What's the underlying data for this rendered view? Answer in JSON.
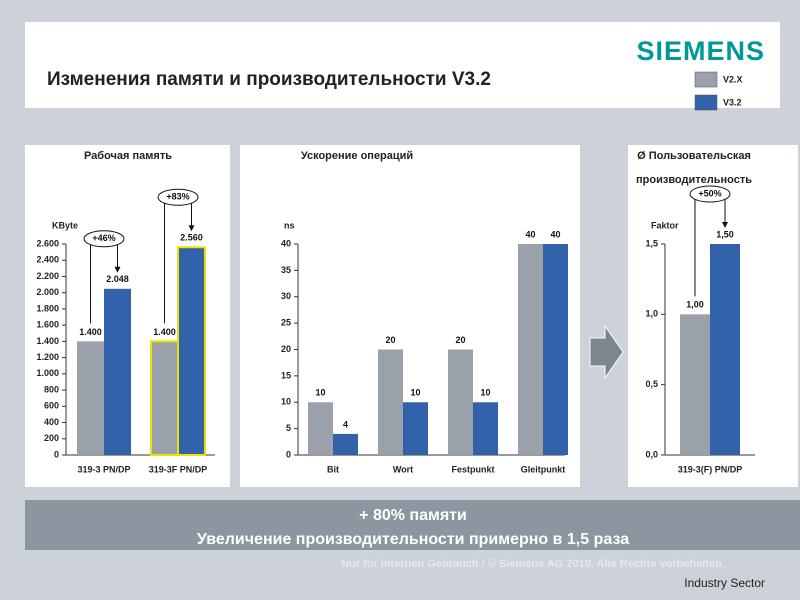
{
  "header": {
    "logo": "SIEMENS",
    "title": "Изменения памяти и производительности V3.2"
  },
  "chart_data": [
    {
      "type": "bar",
      "title": "Рабочая память",
      "y_label": "KByte",
      "categories": [
        "319-3 PN/DP",
        "319-3F PN/DP"
      ],
      "series": [
        {
          "name": "V2.X",
          "color": "#9aa1aa",
          "values": [
            1400,
            1400
          ],
          "value_labels": [
            "1.400",
            "1.400"
          ]
        },
        {
          "name": "V3.2",
          "color": "#3262aa",
          "values": [
            2048,
            2560
          ],
          "value_labels": [
            "2.048",
            "2.560"
          ]
        }
      ],
      "ylim": [
        0,
        2600
      ],
      "yticks": [
        0,
        200,
        400,
        600,
        800,
        {
          "value": 1000,
          "label": "1.000"
        },
        {
          "value": 1200,
          "label": "1.200"
        },
        {
          "value": 1400,
          "label": "1.400"
        },
        {
          "value": 1600,
          "label": "1.600"
        },
        {
          "value": 1800,
          "label": "1.800"
        },
        {
          "value": 2000,
          "label": "2.000"
        },
        {
          "value": 2200,
          "label": "2.200"
        },
        {
          "value": 2400,
          "label": "2.400"
        },
        {
          "value": 2600,
          "label": "2.600"
        }
      ],
      "annotations": [
        "+46%",
        "+83%"
      ],
      "highlight_category": 1,
      "highlight_color": "#e6e600"
    },
    {
      "type": "bar",
      "title": "Ускорение операций",
      "y_label": "ns",
      "categories": [
        "Bit",
        "Wort",
        "Festpunkt",
        "Gleitpunkt"
      ],
      "series": [
        {
          "name": "V2.X",
          "color": "#9aa1aa",
          "values": [
            10,
            20,
            20,
            40
          ]
        },
        {
          "name": "V3.2",
          "color": "#3262aa",
          "values": [
            4,
            10,
            10,
            40
          ]
        }
      ],
      "ylim": [
        0,
        40
      ],
      "yticks": [
        0,
        5,
        10,
        15,
        20,
        25,
        30,
        35,
        40
      ]
    },
    {
      "type": "bar",
      "title": "Ø Пользовательская производительность",
      "y_label": "Faktor",
      "categories": [
        "319-3(F) PN/DP"
      ],
      "series": [
        {
          "name": "V2.X",
          "color": "#9aa1aa",
          "values": [
            1.0
          ],
          "value_labels": [
            "1,00"
          ]
        },
        {
          "name": "V3.2",
          "color": "#3262aa",
          "values": [
            1.5
          ],
          "value_labels": [
            "1,50"
          ]
        }
      ],
      "ylim": [
        0,
        1.5
      ],
      "yticks": [
        {
          "value": 0,
          "label": "0,0"
        },
        {
          "value": 0.5,
          "label": "0,5"
        },
        {
          "value": 1.0,
          "label": "1,0"
        },
        {
          "value": 1.5,
          "label": "1,5"
        }
      ],
      "annotations": [
        "+50%"
      ]
    }
  ],
  "summary": [
    "+ 80% памяти",
    "Увеличение производительности примерно в 1,5 раза"
  ],
  "footer": {
    "notice": "Nur für internen Gebrauch / © Siemens AG 2010. Alle Rechte vorbehalten.",
    "sector": "Industry Sector"
  }
}
